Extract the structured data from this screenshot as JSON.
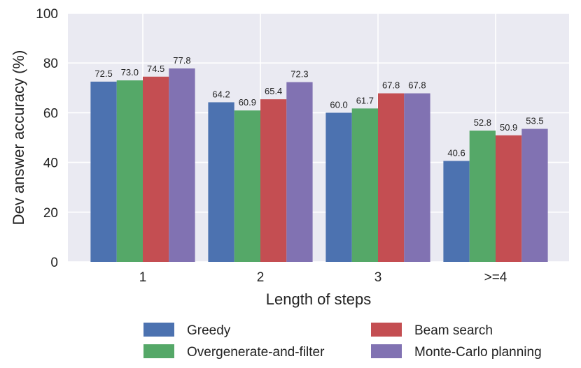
{
  "chart_data": {
    "type": "bar",
    "title": "",
    "xlabel": "Length of steps",
    "ylabel": "Dev answer accuracy (%)",
    "categories": [
      "1",
      "2",
      "3",
      ">=4"
    ],
    "ylim": [
      0,
      100
    ],
    "yticks": [
      0,
      20,
      40,
      60,
      80,
      100
    ],
    "grid": true,
    "legend_position": "bottom",
    "series": [
      {
        "name": "Greedy",
        "color": "#4c72b0",
        "values": [
          72.5,
          64.2,
          60.0,
          40.6
        ],
        "labels": [
          "72.5",
          "64.2",
          "60.0",
          "40.6"
        ]
      },
      {
        "name": "Overgenerate-and-filter",
        "color": "#55a868",
        "values": [
          73.0,
          60.9,
          61.7,
          52.8
        ],
        "labels": [
          "73.0",
          "60.9",
          "61.7",
          "52.8"
        ]
      },
      {
        "name": "Beam search",
        "color": "#c44e52",
        "values": [
          74.5,
          65.4,
          67.8,
          50.9
        ],
        "labels": [
          "74.5",
          "65.4",
          "67.8",
          "50.9"
        ]
      },
      {
        "name": "Monte-Carlo planning",
        "color": "#8172b2",
        "values": [
          77.8,
          72.3,
          67.8,
          53.5
        ],
        "labels": [
          "77.8",
          "72.3",
          "67.8",
          "53.5"
        ]
      }
    ]
  }
}
